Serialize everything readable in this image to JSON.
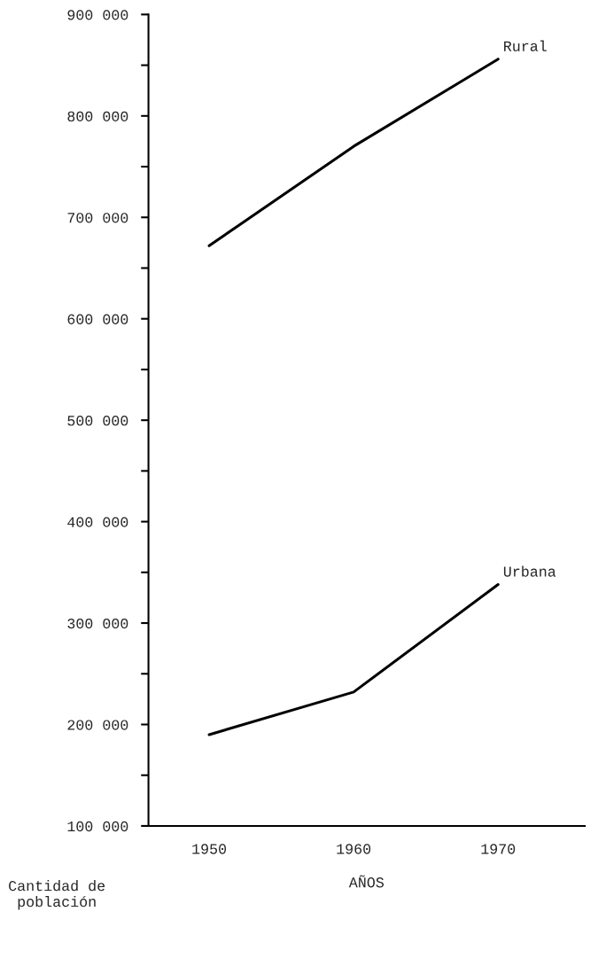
{
  "chart_data": {
    "type": "line",
    "xlabel": "AÑOS",
    "ylabel": "Cantidad de\npoblación",
    "x": [
      1950,
      1960,
      1970
    ],
    "series": [
      {
        "name": "Rural",
        "color": "#000000",
        "values": [
          672000,
          770000,
          856000
        ]
      },
      {
        "name": "Urbana",
        "color": "#000000",
        "values": [
          190000,
          232000,
          338000
        ]
      }
    ],
    "xlim": [
      1945.8,
      1976
    ],
    "xticks": [
      1950,
      1960,
      1970
    ],
    "ylim": [
      100000,
      900000
    ],
    "yticks": [
      {
        "value": 100000,
        "label": "100 000"
      },
      {
        "value": 150000,
        "label": null
      },
      {
        "value": 200000,
        "label": "200 000"
      },
      {
        "value": 250000,
        "label": null
      },
      {
        "value": 300000,
        "label": "300 000"
      },
      {
        "value": 350000,
        "label": null
      },
      {
        "value": 400000,
        "label": "400 000"
      },
      {
        "value": 450000,
        "label": null
      },
      {
        "value": 500000,
        "label": "500 000"
      },
      {
        "value": 550000,
        "label": null
      },
      {
        "value": 600000,
        "label": "600 000"
      },
      {
        "value": 650000,
        "label": null
      },
      {
        "value": 700000,
        "label": "700 000"
      },
      {
        "value": 750000,
        "label": null
      },
      {
        "value": 800000,
        "label": "800 000"
      },
      {
        "value": 850000,
        "label": null
      },
      {
        "value": 900000,
        "label": "900 000"
      }
    ],
    "grid": false,
    "legend": false,
    "marker": "none",
    "line_style": "solid"
  }
}
